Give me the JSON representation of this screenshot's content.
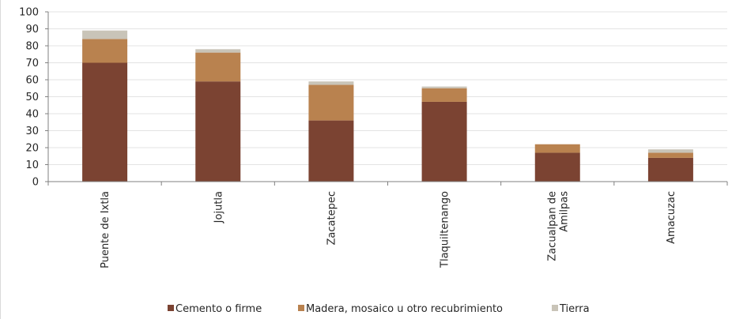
{
  "chart_data": {
    "type": "bar",
    "stacked": true,
    "categories": [
      [
        "Puente de Ixtla"
      ],
      [
        "Jojutla"
      ],
      [
        "Zacatepec"
      ],
      [
        "Tlaquiltenango"
      ],
      [
        "Zacualpan de",
        "Amilpas"
      ],
      [
        "Amacuzac"
      ]
    ],
    "series": [
      {
        "name": "Cemento o firme",
        "color": "#7b4332",
        "values": [
          70,
          59,
          36,
          47,
          17,
          14
        ]
      },
      {
        "name": "Madera, mosaico u otro recubrimiento",
        "color": "#b9824f",
        "values": [
          14,
          17,
          21,
          8,
          5,
          3
        ]
      },
      {
        "name": "Tierra",
        "color": "#c9c4b8",
        "values": [
          5,
          2,
          2,
          1,
          0,
          2
        ]
      }
    ],
    "ylim": [
      0,
      100
    ],
    "yticks": [
      0,
      10,
      20,
      30,
      40,
      50,
      60,
      70,
      80,
      90,
      100
    ],
    "grid": true,
    "legend_position": "bottom",
    "title": "",
    "xlabel": "",
    "ylabel": ""
  }
}
